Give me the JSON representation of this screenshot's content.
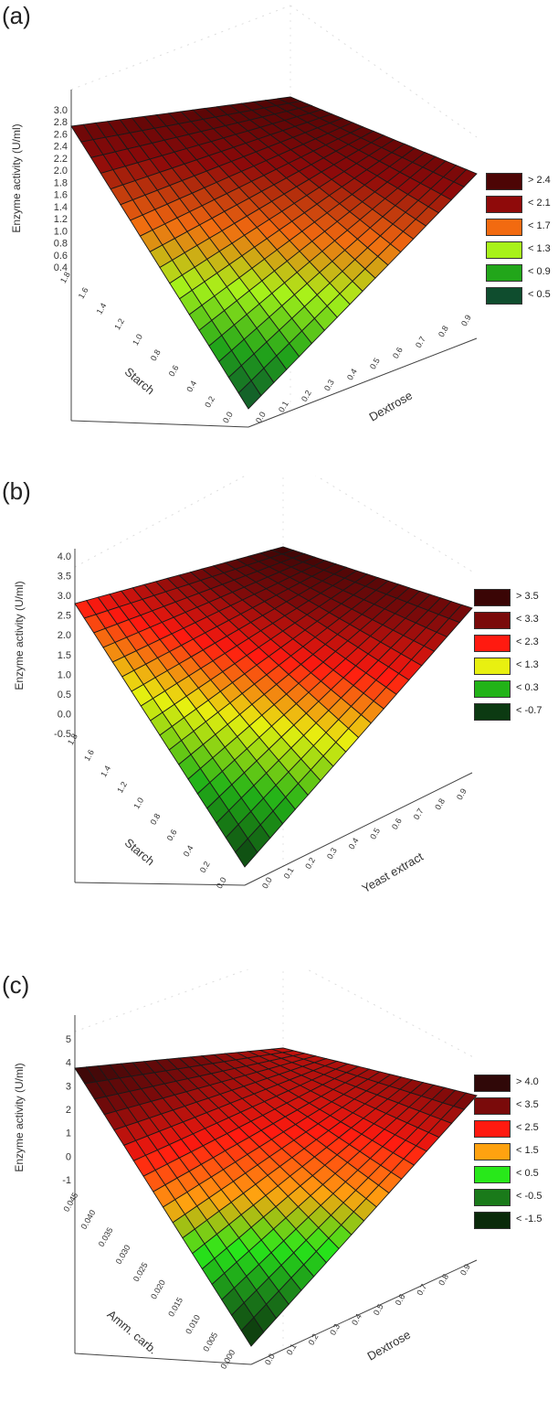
{
  "chart_data": [
    {
      "panel_label": "(a)",
      "type": "surface3d",
      "zlabel": "Enzyme activity (U/ml)",
      "xlabel": "Starch",
      "ylabel": "Dextrose",
      "xticks": [
        "1.8",
        "1.6",
        "1.4",
        "1.2",
        "1.0",
        "0.8",
        "0.6",
        "0.4",
        "0.2",
        "0.0"
      ],
      "yticks": [
        "0.0",
        "0.1",
        "0.2",
        "0.3",
        "0.4",
        "0.5",
        "0.6",
        "0.7",
        "0.8",
        "0.9"
      ],
      "zticks": [
        "3.0",
        "2.8",
        "2.6",
        "2.4",
        "2.2",
        "2.0",
        "1.8",
        "1.6",
        "1.4",
        "1.2",
        "1.0",
        "0.8",
        "0.6",
        "0.4"
      ],
      "zlim": [
        0.2,
        3.0
      ],
      "corners": {
        "origin": 0.3,
        "starch_max": 2.4,
        "dextrose_max": 2.3,
        "both_max": 2.6
      },
      "legend": [
        {
          "label": "> 2.4",
          "color": "#4d0505"
        },
        {
          "label": "< 2.1",
          "color": "#8f0a0a"
        },
        {
          "label": "< 1.7",
          "color": "#f26a10"
        },
        {
          "label": "< 1.3",
          "color": "#a8f21a"
        },
        {
          "label": "< 0.9",
          "color": "#22a61a"
        },
        {
          "label": "< 0.5",
          "color": "#0f4d2e"
        }
      ]
    },
    {
      "panel_label": "(b)",
      "type": "surface3d",
      "zlabel": "Enzyme activity (U/ml)",
      "xlabel": "Starch",
      "ylabel": "Yeast extract",
      "xticks": [
        "1.8",
        "1.6",
        "1.4",
        "1.2",
        "1.0",
        "0.8",
        "0.6",
        "0.4",
        "0.2",
        "0.0"
      ],
      "yticks": [
        "0.0",
        "0.1",
        "0.2",
        "0.3",
        "0.4",
        "0.5",
        "0.6",
        "0.7",
        "0.8",
        "0.9"
      ],
      "zticks": [
        "4.0",
        "3.5",
        "3.0",
        "2.5",
        "2.0",
        "1.5",
        "1.0",
        "0.5",
        "0.0",
        "-0.5"
      ],
      "zlim": [
        -1.0,
        4.0
      ],
      "corners": {
        "origin": -0.8,
        "starch_max": 2.0,
        "dextrose_max": 3.1,
        "both_max": 3.9
      },
      "legend": [
        {
          "label": "> 3.5",
          "color": "#3a0505"
        },
        {
          "label": "< 3.3",
          "color": "#7a0a0a"
        },
        {
          "label": "< 2.3",
          "color": "#ff1a10"
        },
        {
          "label": "< 1.3",
          "color": "#e8f010"
        },
        {
          "label": "< 0.3",
          "color": "#22b318"
        },
        {
          "label": "< -0.7",
          "color": "#0c3a12"
        }
      ]
    },
    {
      "panel_label": "(c)",
      "type": "surface3d",
      "zlabel": "Enzyme activity (U/ml)",
      "xlabel": "Amm. carb.",
      "ylabel": "Dextrose",
      "xticks": [
        "0.045",
        "0.040",
        "0.035",
        "0.030",
        "0.025",
        "0.020",
        "0.015",
        "0.010",
        "0.005",
        "0.000"
      ],
      "yticks": [
        "0.0",
        "0.1",
        "0.2",
        "0.3",
        "0.4",
        "0.5",
        "0.6",
        "0.7",
        "0.8",
        "0.9"
      ],
      "zticks": [
        "5",
        "4",
        "3",
        "2",
        "1",
        "0",
        "-1"
      ],
      "zlim": [
        -2.0,
        5.0
      ],
      "corners": {
        "origin": -1.6,
        "starch_max": 4.0,
        "dextrose_max": 3.2,
        "both_max": 2.5
      },
      "legend": [
        {
          "label": "> 4.0",
          "color": "#300808"
        },
        {
          "label": "< 3.5",
          "color": "#7a0a0a"
        },
        {
          "label": "< 2.5",
          "color": "#ff1a10"
        },
        {
          "label": "< 1.5",
          "color": "#ffa210"
        },
        {
          "label": "< 0.5",
          "color": "#28e81a"
        },
        {
          "label": "< -0.5",
          "color": "#1a7a1a"
        },
        {
          "label": "< -1.5",
          "color": "#0a2a0a"
        }
      ]
    }
  ]
}
